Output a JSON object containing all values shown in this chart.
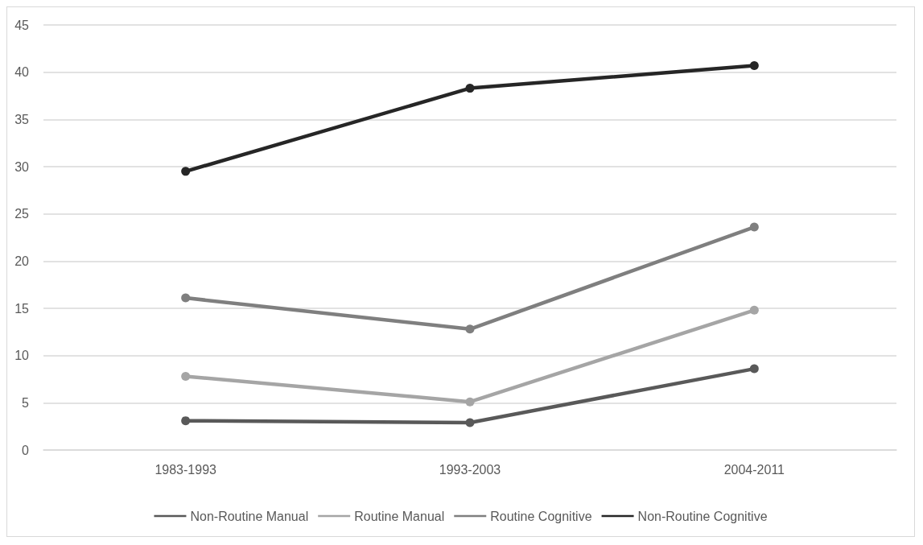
{
  "chart_data": {
    "type": "line",
    "categories": [
      "1983-1993",
      "1993-2003",
      "2004-2011"
    ],
    "series": [
      {
        "name": "Non-Routine Manual",
        "color": "#595959",
        "values": [
          3.1,
          2.9,
          8.6
        ]
      },
      {
        "name": "Routine Manual",
        "color": "#a5a5a5",
        "values": [
          7.8,
          5.1,
          14.8
        ]
      },
      {
        "name": "Routine Cognitive",
        "color": "#7f7f7f",
        "values": [
          16.1,
          12.8,
          23.6
        ]
      },
      {
        "name": "Non-Routine Cognitive",
        "color": "#262626",
        "values": [
          29.5,
          38.3,
          40.7
        ]
      }
    ],
    "ylim": [
      0,
      45
    ],
    "yticks": [
      0,
      5,
      10,
      15,
      20,
      25,
      30,
      35,
      40,
      45
    ],
    "grid": "y",
    "legend": "bottom",
    "marker": "circle",
    "line_style": "solid"
  }
}
